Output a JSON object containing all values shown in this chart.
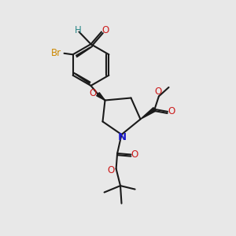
{
  "background_color": "#e8e8e8",
  "bond_color": "#1a1a1a",
  "N_color": "#1a1acc",
  "O_color": "#cc1a1a",
  "Br_color": "#cc8800",
  "H_color": "#2a8888",
  "fig_size": [
    3.0,
    3.0
  ],
  "dpi": 100,
  "xlim": [
    0,
    10
  ],
  "ylim": [
    0,
    10
  ]
}
